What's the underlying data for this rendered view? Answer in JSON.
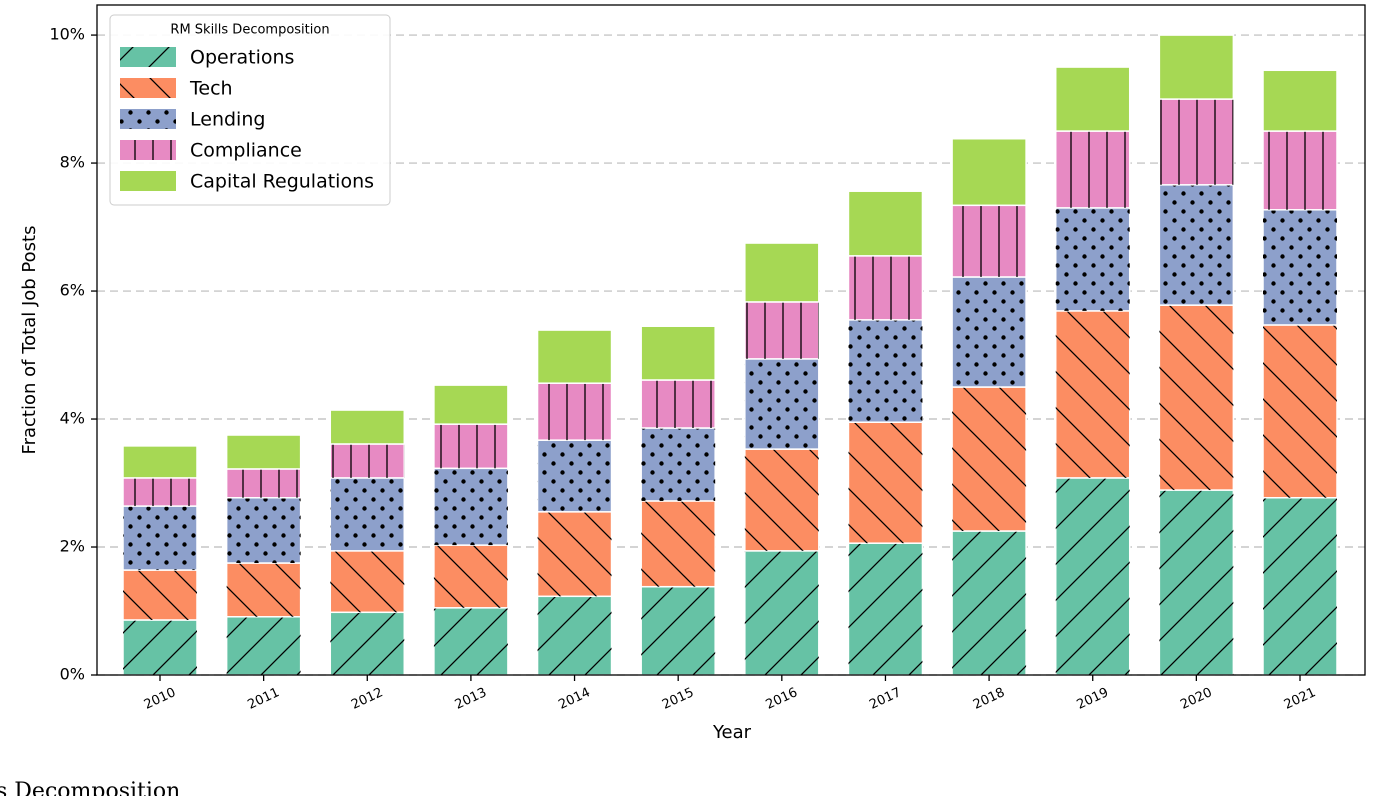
{
  "chart_data": {
    "type": "stacked-bar",
    "xlabel": "Year",
    "ylabel": "Fraction of Total Job Posts",
    "categories": [
      "2010",
      "2011",
      "2012",
      "2013",
      "2014",
      "2015",
      "2016",
      "2017",
      "2018",
      "2019",
      "2020",
      "2021"
    ],
    "series": [
      {
        "name": "Operations",
        "color": "#66c2a5",
        "hatch": "/",
        "values": [
          0.86,
          0.91,
          0.98,
          1.05,
          1.23,
          1.38,
          1.94,
          2.06,
          2.25,
          3.08,
          2.89,
          2.77
        ]
      },
      {
        "name": "Tech",
        "color": "#fc8d62",
        "hatch": "\\",
        "values": [
          0.78,
          0.84,
          0.96,
          0.98,
          1.32,
          1.34,
          1.59,
          1.89,
          2.25,
          2.61,
          2.89,
          2.7
        ]
      },
      {
        "name": "Lending",
        "color": "#8da0cb",
        "hatch": ".",
        "values": [
          1.0,
          1.02,
          1.14,
          1.2,
          1.12,
          1.14,
          1.41,
          1.6,
          1.72,
          1.61,
          1.88,
          1.8
        ]
      },
      {
        "name": "Compliance",
        "color": "#e78ac3",
        "hatch": "|",
        "values": [
          0.44,
          0.45,
          0.53,
          0.69,
          0.89,
          0.75,
          0.89,
          1.0,
          1.12,
          1.2,
          1.34,
          1.23
        ]
      },
      {
        "name": "Capital Regulations",
        "color": "#a6d854",
        "hatch": "",
        "values": [
          0.5,
          0.53,
          0.53,
          0.61,
          0.83,
          0.84,
          0.92,
          1.01,
          1.04,
          1.0,
          1.0,
          0.95
        ]
      }
    ],
    "ylim": [
      0,
      10.47
    ],
    "yticks": [
      {
        "value": 0,
        "label": "0%"
      },
      {
        "value": 2,
        "label": "2%"
      },
      {
        "value": 4,
        "label": "4%"
      },
      {
        "value": 6,
        "label": "6%"
      },
      {
        "value": 8,
        "label": "8%"
      },
      {
        "value": 10,
        "label": "10%"
      }
    ],
    "grid": true,
    "legend_title": "RM Skills Decomposition",
    "legend_loc": "upper left"
  },
  "caption": "s Decomposition"
}
